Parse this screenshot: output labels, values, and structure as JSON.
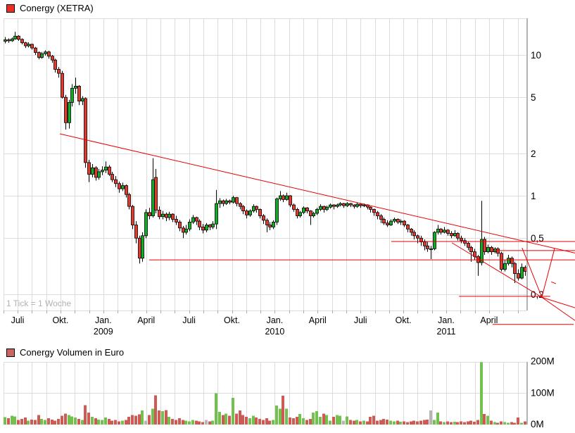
{
  "price_header": {
    "title": "Conergy (XETRA)"
  },
  "volume_header": {
    "title": "Conergy Volumen in Euro"
  },
  "footnote": {
    "text": "1 Tick = 1 Woche"
  },
  "colors": {
    "legend_price": "#ee2e20",
    "legend_volume": "#c96661",
    "candle_up": "#0fae25",
    "candle_down": "#e23b2e",
    "candle_outline": "#000000",
    "volume_up": "#72c14e",
    "volume_down": "#cd5b53",
    "volume_neutral": "#b5b5b5",
    "annotation": "#e60000",
    "grid": "#dcdcdc",
    "axis": "#b3b3b3",
    "tick_note": "#b2b2b2",
    "label": "#000000"
  },
  "chart_data": [
    {
      "type": "candlestick",
      "title": "Conergy (XETRA)",
      "interval": "1 Woche",
      "scale": "log",
      "ylim": [
        0.15,
        18
      ],
      "grid": true,
      "y_ticks": [
        {
          "value": 10,
          "label": "10"
        },
        {
          "value": 5,
          "label": "5"
        },
        {
          "value": 2,
          "label": "2"
        },
        {
          "value": 1,
          "label": "1"
        },
        {
          "value": 0.5,
          "label": "0,5"
        },
        {
          "value": 0.2,
          "label": "0,2"
        }
      ],
      "x_ticks": [
        {
          "month_index": 0,
          "label": "Juli"
        },
        {
          "month_index": 3,
          "label": "Okt."
        },
        {
          "month_index": 6,
          "label": "Jan.",
          "year": "2009"
        },
        {
          "month_index": 9,
          "label": "April"
        },
        {
          "month_index": 12,
          "label": "Juli"
        },
        {
          "month_index": 15,
          "label": "Okt."
        },
        {
          "month_index": 18,
          "label": "Jan.",
          "year": "2010"
        },
        {
          "month_index": 21,
          "label": "April"
        },
        {
          "month_index": 24,
          "label": "Juli"
        },
        {
          "month_index": 27,
          "label": "Okt."
        },
        {
          "month_index": 30,
          "label": "Jan.",
          "year": "2011"
        },
        {
          "month_index": 33,
          "label": "April"
        }
      ],
      "weeks_total": 156,
      "candles": [
        [
          12.5,
          13.4,
          12.1,
          12.8
        ],
        [
          12.8,
          13.1,
          12.2,
          12.6
        ],
        [
          12.6,
          13.3,
          12.4,
          13.0
        ],
        [
          13.0,
          14.6,
          12.8,
          13.6
        ],
        [
          13.6,
          13.8,
          12.6,
          12.9
        ],
        [
          12.9,
          13.1,
          11.9,
          12.2
        ],
        [
          12.2,
          12.4,
          11.2,
          11.6
        ],
        [
          11.6,
          12.3,
          11.3,
          11.9
        ],
        [
          11.9,
          12.0,
          10.9,
          11.2
        ],
        [
          11.2,
          11.4,
          10.0,
          10.4
        ],
        [
          10.4,
          10.6,
          9.3,
          9.6
        ],
        [
          9.6,
          10.5,
          9.4,
          10.2
        ],
        [
          10.2,
          10.8,
          9.9,
          10.5
        ],
        [
          10.5,
          10.7,
          9.4,
          9.8
        ],
        [
          9.8,
          10.0,
          8.8,
          9.2
        ],
        [
          9.2,
          9.4,
          7.5,
          7.9
        ],
        [
          7.9,
          8.2,
          6.9,
          7.4
        ],
        [
          7.4,
          7.7,
          4.9,
          5.0
        ],
        [
          5.0,
          5.2,
          2.95,
          3.3
        ],
        [
          3.3,
          4.8,
          3.0,
          4.6
        ],
        [
          4.6,
          6.2,
          4.3,
          5.8
        ],
        [
          5.8,
          6.9,
          5.3,
          6.0
        ],
        [
          6.0,
          6.1,
          4.4,
          4.7
        ],
        [
          4.7,
          5.1,
          4.4,
          4.9
        ],
        [
          4.9,
          5.0,
          1.58,
          1.72
        ],
        [
          1.72,
          1.8,
          1.25,
          1.42
        ],
        [
          1.42,
          1.68,
          1.35,
          1.58
        ],
        [
          1.58,
          1.62,
          1.28,
          1.35
        ],
        [
          1.35,
          1.55,
          1.3,
          1.48
        ],
        [
          1.48,
          1.62,
          1.4,
          1.52
        ],
        [
          1.52,
          1.75,
          1.45,
          1.6
        ],
        [
          1.6,
          1.65,
          1.38,
          1.42
        ],
        [
          1.42,
          1.48,
          1.25,
          1.3
        ],
        [
          1.3,
          1.38,
          1.15,
          1.22
        ],
        [
          1.22,
          1.26,
          1.05,
          1.12
        ],
        [
          1.12,
          1.24,
          1.08,
          1.18
        ],
        [
          1.18,
          1.2,
          0.97,
          1.02
        ],
        [
          1.02,
          1.05,
          0.8,
          0.84
        ],
        [
          0.84,
          0.86,
          0.58,
          0.62
        ],
        [
          0.62,
          0.66,
          0.46,
          0.5
        ],
        [
          0.5,
          0.52,
          0.33,
          0.36
        ],
        [
          0.36,
          0.55,
          0.34,
          0.52
        ],
        [
          0.52,
          0.8,
          0.5,
          0.76
        ],
        [
          0.76,
          0.82,
          0.68,
          0.72
        ],
        [
          0.72,
          1.85,
          0.7,
          1.3
        ],
        [
          1.35,
          1.55,
          0.75,
          0.79
        ],
        [
          0.79,
          0.84,
          0.68,
          0.71
        ],
        [
          0.71,
          0.78,
          0.68,
          0.74
        ],
        [
          0.74,
          0.76,
          0.66,
          0.7
        ],
        [
          0.7,
          0.77,
          0.67,
          0.74
        ],
        [
          0.74,
          0.75,
          0.65,
          0.68
        ],
        [
          0.68,
          0.72,
          0.62,
          0.65
        ],
        [
          0.65,
          0.67,
          0.56,
          0.59
        ],
        [
          0.59,
          0.61,
          0.5,
          0.55
        ],
        [
          0.55,
          0.62,
          0.53,
          0.58
        ],
        [
          0.58,
          0.68,
          0.56,
          0.65
        ],
        [
          0.65,
          0.73,
          0.63,
          0.7
        ],
        [
          0.7,
          0.71,
          0.62,
          0.66
        ],
        [
          0.66,
          0.68,
          0.57,
          0.6
        ],
        [
          0.6,
          0.63,
          0.54,
          0.57
        ],
        [
          0.57,
          0.64,
          0.55,
          0.62
        ],
        [
          0.62,
          0.63,
          0.57,
          0.6
        ],
        [
          0.6,
          0.66,
          0.58,
          0.63
        ],
        [
          0.63,
          1.1,
          0.58,
          0.88
        ],
        [
          0.88,
          0.96,
          0.82,
          0.92
        ],
        [
          0.92,
          0.94,
          0.84,
          0.88
        ],
        [
          0.88,
          0.95,
          0.86,
          0.92
        ],
        [
          0.92,
          0.94,
          0.87,
          0.9
        ],
        [
          0.9,
          1.0,
          0.88,
          0.97
        ],
        [
          0.97,
          0.98,
          0.84,
          0.88
        ],
        [
          0.88,
          0.9,
          0.8,
          0.84
        ],
        [
          0.84,
          0.86,
          0.74,
          0.78
        ],
        [
          0.78,
          0.8,
          0.69,
          0.73
        ],
        [
          0.73,
          0.8,
          0.71,
          0.78
        ],
        [
          0.78,
          0.87,
          0.76,
          0.84
        ],
        [
          0.84,
          0.85,
          0.76,
          0.8
        ],
        [
          0.8,
          0.81,
          0.69,
          0.72
        ],
        [
          0.72,
          0.74,
          0.63,
          0.67
        ],
        [
          0.67,
          0.69,
          0.55,
          0.62
        ],
        [
          0.62,
          0.65,
          0.57,
          0.6
        ],
        [
          0.6,
          0.67,
          0.58,
          0.65
        ],
        [
          0.65,
          0.97,
          0.62,
          0.95
        ],
        [
          0.95,
          1.08,
          0.92,
          1.0
        ],
        [
          1.0,
          1.02,
          0.9,
          0.94
        ],
        [
          0.94,
          1.05,
          0.92,
          1.0
        ],
        [
          1.0,
          1.01,
          0.83,
          0.86
        ],
        [
          0.86,
          0.88,
          0.77,
          0.8
        ],
        [
          0.8,
          0.82,
          0.69,
          0.72
        ],
        [
          0.72,
          0.78,
          0.7,
          0.76
        ],
        [
          0.76,
          0.84,
          0.74,
          0.82
        ],
        [
          0.82,
          0.83,
          0.75,
          0.78
        ],
        [
          0.78,
          0.79,
          0.62,
          0.72
        ],
        [
          0.72,
          0.77,
          0.7,
          0.75
        ],
        [
          0.75,
          0.82,
          0.73,
          0.8
        ],
        [
          0.8,
          0.87,
          0.78,
          0.84
        ],
        [
          0.84,
          0.85,
          0.76,
          0.8
        ],
        [
          0.8,
          0.85,
          0.78,
          0.83
        ],
        [
          0.83,
          0.88,
          0.81,
          0.86
        ],
        [
          0.86,
          0.87,
          0.8,
          0.84
        ],
        [
          0.84,
          0.88,
          0.82,
          0.86
        ],
        [
          0.86,
          0.9,
          0.84,
          0.88
        ],
        [
          0.88,
          0.89,
          0.82,
          0.85
        ],
        [
          0.85,
          0.9,
          0.83,
          0.88
        ],
        [
          0.88,
          0.89,
          0.83,
          0.86
        ],
        [
          0.86,
          0.87,
          0.81,
          0.84
        ],
        [
          0.84,
          0.89,
          0.82,
          0.87
        ],
        [
          0.87,
          0.88,
          0.82,
          0.85
        ],
        [
          0.85,
          0.88,
          0.83,
          0.86
        ],
        [
          0.86,
          0.87,
          0.8,
          0.83
        ],
        [
          0.83,
          0.84,
          0.76,
          0.8
        ],
        [
          0.8,
          0.81,
          0.72,
          0.76
        ],
        [
          0.76,
          0.78,
          0.68,
          0.72
        ],
        [
          0.72,
          0.74,
          0.64,
          0.68
        ],
        [
          0.68,
          0.7,
          0.62,
          0.64
        ],
        [
          0.64,
          0.67,
          0.6,
          0.62
        ],
        [
          0.62,
          0.68,
          0.61,
          0.66
        ],
        [
          0.66,
          0.7,
          0.64,
          0.68
        ],
        [
          0.68,
          0.69,
          0.63,
          0.65
        ],
        [
          0.65,
          0.68,
          0.62,
          0.66
        ],
        [
          0.66,
          0.67,
          0.6,
          0.62
        ],
        [
          0.62,
          0.63,
          0.55,
          0.58
        ],
        [
          0.58,
          0.59,
          0.52,
          0.55
        ],
        [
          0.55,
          0.57,
          0.49,
          0.52
        ],
        [
          0.52,
          0.53,
          0.46,
          0.5
        ],
        [
          0.5,
          0.52,
          0.44,
          0.47
        ],
        [
          0.47,
          0.49,
          0.41,
          0.44
        ],
        [
          0.44,
          0.47,
          0.4,
          0.42
        ],
        [
          0.42,
          0.44,
          0.355,
          0.42
        ],
        [
          0.42,
          0.56,
          0.41,
          0.55
        ],
        [
          0.55,
          0.62,
          0.53,
          0.58
        ],
        [
          0.58,
          0.59,
          0.53,
          0.55
        ],
        [
          0.55,
          0.6,
          0.54,
          0.57
        ],
        [
          0.57,
          0.58,
          0.52,
          0.54
        ],
        [
          0.54,
          0.56,
          0.5,
          0.52
        ],
        [
          0.52,
          0.57,
          0.51,
          0.54
        ],
        [
          0.54,
          0.55,
          0.48,
          0.5
        ],
        [
          0.5,
          0.52,
          0.46,
          0.48
        ],
        [
          0.48,
          0.5,
          0.44,
          0.46
        ],
        [
          0.46,
          0.47,
          0.41,
          0.43
        ],
        [
          0.43,
          0.44,
          0.34,
          0.4
        ],
        [
          0.4,
          0.42,
          0.35,
          0.37
        ],
        [
          0.37,
          0.38,
          0.27,
          0.335
        ],
        [
          0.335,
          0.92,
          0.32,
          0.49
        ],
        [
          0.49,
          0.51,
          0.38,
          0.4
        ],
        [
          0.4,
          0.45,
          0.39,
          0.43
        ],
        [
          0.43,
          0.44,
          0.38,
          0.4
        ],
        [
          0.4,
          0.43,
          0.39,
          0.42
        ],
        [
          0.42,
          0.43,
          0.37,
          0.39
        ],
        [
          0.39,
          0.4,
          0.29,
          0.3
        ],
        [
          0.3,
          0.35,
          0.29,
          0.33
        ],
        [
          0.33,
          0.38,
          0.32,
          0.36
        ],
        [
          0.36,
          0.37,
          0.31,
          0.33
        ],
        [
          0.33,
          0.34,
          0.24,
          0.28
        ],
        [
          0.28,
          0.3,
          0.25,
          0.26
        ],
        [
          0.26,
          0.33,
          0.255,
          0.31
        ],
        [
          0.31,
          0.32,
          0.27,
          0.29
        ]
      ],
      "trendlines": [
        {
          "x1": 16.4,
          "p1": 2.75,
          "x2": 170,
          "p2": 0.392
        },
        {
          "x1": 115.2,
          "p1": 0.473,
          "x2": 170,
          "p2": 0.473
        },
        {
          "x1": 145.4,
          "p1": 0.408,
          "x2": 170,
          "p2": 0.408
        },
        {
          "x1": 43.0,
          "p1": 0.35,
          "x2": 170,
          "p2": 0.35
        },
        {
          "x1": 135.4,
          "p1": 0.193,
          "x2": 162.6,
          "p2": 0.193
        },
        {
          "x1": 133.3,
          "p1": 0.463,
          "x2": 160.1,
          "p2": 0.19
        },
        {
          "x1": 160.1,
          "p1": 0.19,
          "x2": 154.2,
          "p2": 0.427
        },
        {
          "x1": 160.1,
          "p1": 0.19,
          "x2": 163.9,
          "p2": 0.422
        },
        {
          "x1": 160.1,
          "p1": 0.19,
          "x2": 170,
          "p2": 0.16
        },
        {
          "x1": 160.1,
          "p1": 0.19,
          "x2": 170,
          "p2": 0.13
        },
        {
          "x1": 162.9,
          "p1": 0.245,
          "x2": 164.3,
          "p2": 0.237
        },
        {
          "x1": 145.4,
          "p1": 0.122,
          "x2": 169.6,
          "p2": 0.122
        }
      ]
    },
    {
      "type": "bar",
      "title": "Conergy Volumen in Euro",
      "unit": "EUR",
      "ylim": [
        0,
        220
      ],
      "y_ticks": [
        {
          "value": 200,
          "label": "200M"
        },
        {
          "value": 100,
          "label": "100M"
        },
        {
          "value": 0,
          "label": "0M"
        }
      ],
      "values_millions": [
        24,
        20,
        28,
        26,
        15,
        18,
        22,
        12,
        16,
        14,
        30,
        18,
        14,
        20,
        16,
        12,
        18,
        28,
        35,
        30,
        26,
        22,
        18,
        15,
        62,
        38,
        25,
        20,
        16,
        14,
        22,
        18,
        12,
        15,
        10,
        12,
        15,
        25,
        30,
        28,
        32,
        45,
        12,
        30,
        50,
        93,
        45,
        42,
        46,
        25,
        18,
        15,
        20,
        14,
        12,
        10,
        14,
        12,
        10,
        8,
        14,
        10,
        12,
        100,
        40,
        30,
        35,
        28,
        85,
        35,
        45,
        30,
        25,
        20,
        28,
        22,
        18,
        15,
        20,
        12,
        15,
        60,
        50,
        92,
        50,
        22,
        20,
        25,
        33,
        20,
        15,
        18,
        38,
        42,
        25,
        35,
        30,
        12,
        25,
        30,
        28,
        12,
        26,
        15,
        12,
        14,
        10,
        12,
        10,
        25,
        28,
        12,
        14,
        18,
        16,
        12,
        10,
        12,
        9,
        10,
        8,
        10,
        12,
        10,
        12,
        14,
        16,
        45,
        14,
        38,
        10,
        8,
        10,
        8,
        9,
        8,
        10,
        8,
        10,
        12,
        9,
        14,
        198,
        33,
        28,
        12,
        8,
        6,
        10,
        8,
        6,
        8,
        6,
        22,
        6,
        10
      ],
      "gray_weeks": [
        42,
        60,
        101,
        127
      ]
    }
  ]
}
